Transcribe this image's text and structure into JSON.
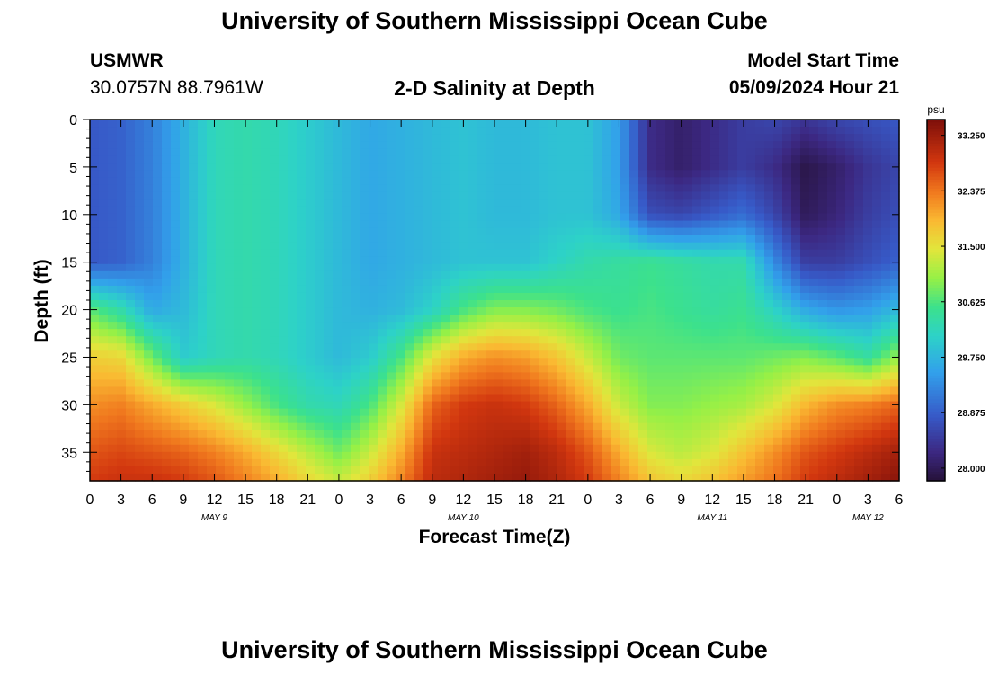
{
  "title": "University of Southern Mississippi Ocean Cube",
  "station": {
    "name": "USMWR",
    "coords": "30.0757N  88.7961W"
  },
  "plot_title": "2-D Salinity at Depth",
  "model": {
    "label": "Model Start Time",
    "value": "05/09/2024 Hour 21"
  },
  "footer_title": "University of Southern Mississippi Ocean Cube",
  "colors": {
    "frame": "#000000",
    "background": "#ffffff"
  },
  "chart_data": {
    "type": "heatmap",
    "title": "2-D Salinity at Depth",
    "xlabel": "Forecast Time(Z)",
    "ylabel": "Depth (ft)",
    "x_ticks": [
      "0",
      "3",
      "6",
      "9",
      "12",
      "15",
      "18",
      "21",
      "0",
      "3",
      "6",
      "9",
      "12",
      "15",
      "18",
      "21",
      "0",
      "3",
      "6",
      "9",
      "12",
      "15",
      "18",
      "21",
      "0",
      "3",
      "6"
    ],
    "x_range_hours": [
      0,
      78
    ],
    "day_labels": [
      {
        "label": "MAY 9",
        "hour": 12
      },
      {
        "label": "MAY 10",
        "hour": 36
      },
      {
        "label": "MAY 11",
        "hour": 60
      },
      {
        "label": "MAY 12",
        "hour": 75
      }
    ],
    "y_ticks": [
      0,
      5,
      10,
      15,
      20,
      25,
      30,
      35
    ],
    "y_range_ft": [
      0,
      38
    ],
    "colorbar": {
      "unit": "psu",
      "ticks": [
        "33.250",
        "32.375",
        "31.500",
        "30.625",
        "29.750",
        "28.875",
        "28.000"
      ],
      "range": [
        27.8,
        33.5
      ]
    },
    "time_hours": [
      0,
      3,
      6,
      9,
      12,
      15,
      18,
      21,
      24,
      27,
      30,
      33,
      36,
      39,
      42,
      45,
      48,
      51,
      54,
      57,
      60,
      63,
      66,
      69,
      72,
      75,
      78
    ],
    "depth_ft": [
      0,
      5,
      10,
      15,
      20,
      25,
      30,
      35,
      38
    ],
    "values": [
      [
        28.8,
        28.9,
        29.2,
        29.7,
        30.2,
        30.3,
        30.2,
        30.0,
        29.8,
        29.6,
        29.7,
        29.8,
        29.9,
        29.8,
        29.8,
        29.9,
        29.9,
        29.5,
        28.3,
        28.1,
        28.3,
        28.5,
        28.6,
        28.4,
        28.6,
        28.7,
        28.8
      ],
      [
        28.8,
        28.9,
        29.2,
        29.7,
        30.2,
        30.3,
        30.2,
        30.0,
        29.8,
        29.6,
        29.7,
        29.8,
        29.9,
        29.8,
        29.8,
        29.9,
        29.9,
        29.5,
        28.3,
        28.1,
        28.3,
        28.5,
        28.3,
        27.9,
        28.1,
        28.4,
        28.6
      ],
      [
        28.8,
        28.9,
        29.2,
        29.7,
        30.2,
        30.3,
        30.2,
        30.0,
        29.8,
        29.6,
        29.7,
        29.8,
        29.9,
        29.8,
        29.8,
        29.9,
        29.9,
        29.6,
        28.7,
        28.6,
        28.8,
        29.0,
        28.6,
        28.0,
        28.2,
        28.5,
        28.7
      ],
      [
        28.8,
        28.9,
        29.2,
        29.7,
        30.2,
        30.3,
        30.2,
        30.0,
        29.8,
        29.6,
        29.7,
        29.8,
        29.9,
        29.9,
        29.9,
        30.1,
        30.3,
        30.4,
        30.5,
        30.4,
        30.3,
        30.3,
        29.3,
        28.5,
        28.5,
        28.7,
        28.9
      ],
      [
        30.7,
        30.3,
        29.6,
        29.8,
        30.2,
        30.3,
        30.2,
        30.0,
        29.8,
        29.7,
        29.8,
        30.1,
        30.6,
        30.9,
        30.9,
        30.8,
        30.6,
        30.5,
        30.6,
        30.5,
        30.4,
        30.5,
        30.1,
        29.6,
        29.4,
        29.5,
        29.8
      ],
      [
        31.7,
        31.6,
        30.8,
        30.0,
        30.2,
        30.3,
        30.2,
        30.0,
        29.8,
        30.0,
        30.6,
        31.5,
        32.0,
        32.2,
        32.1,
        31.8,
        31.3,
        30.8,
        30.7,
        30.7,
        30.7,
        30.7,
        30.8,
        30.9,
        30.7,
        30.4,
        31.0
      ],
      [
        32.2,
        32.3,
        32.0,
        31.7,
        31.4,
        31.0,
        30.6,
        30.3,
        30.2,
        30.6,
        31.4,
        32.5,
        32.8,
        32.9,
        32.8,
        32.5,
        32.0,
        31.3,
        30.9,
        30.9,
        31.0,
        31.1,
        31.4,
        31.9,
        32.2,
        32.3,
        32.5
      ],
      [
        32.6,
        32.7,
        32.6,
        32.5,
        32.3,
        32.0,
        31.6,
        31.2,
        30.8,
        31.3,
        32.0,
        32.9,
        33.0,
        33.1,
        33.2,
        33.0,
        32.6,
        32.0,
        31.4,
        31.2,
        31.4,
        31.8,
        32.2,
        32.6,
        32.8,
        33.0,
        33.2
      ],
      [
        32.8,
        32.9,
        32.9,
        32.8,
        32.6,
        32.3,
        32.0,
        31.6,
        31.3,
        31.7,
        32.3,
        33.0,
        33.1,
        33.2,
        33.3,
        33.1,
        32.8,
        32.3,
        31.8,
        31.6,
        31.8,
        32.1,
        32.4,
        32.8,
        33.0,
        33.2,
        33.4
      ]
    ]
  }
}
